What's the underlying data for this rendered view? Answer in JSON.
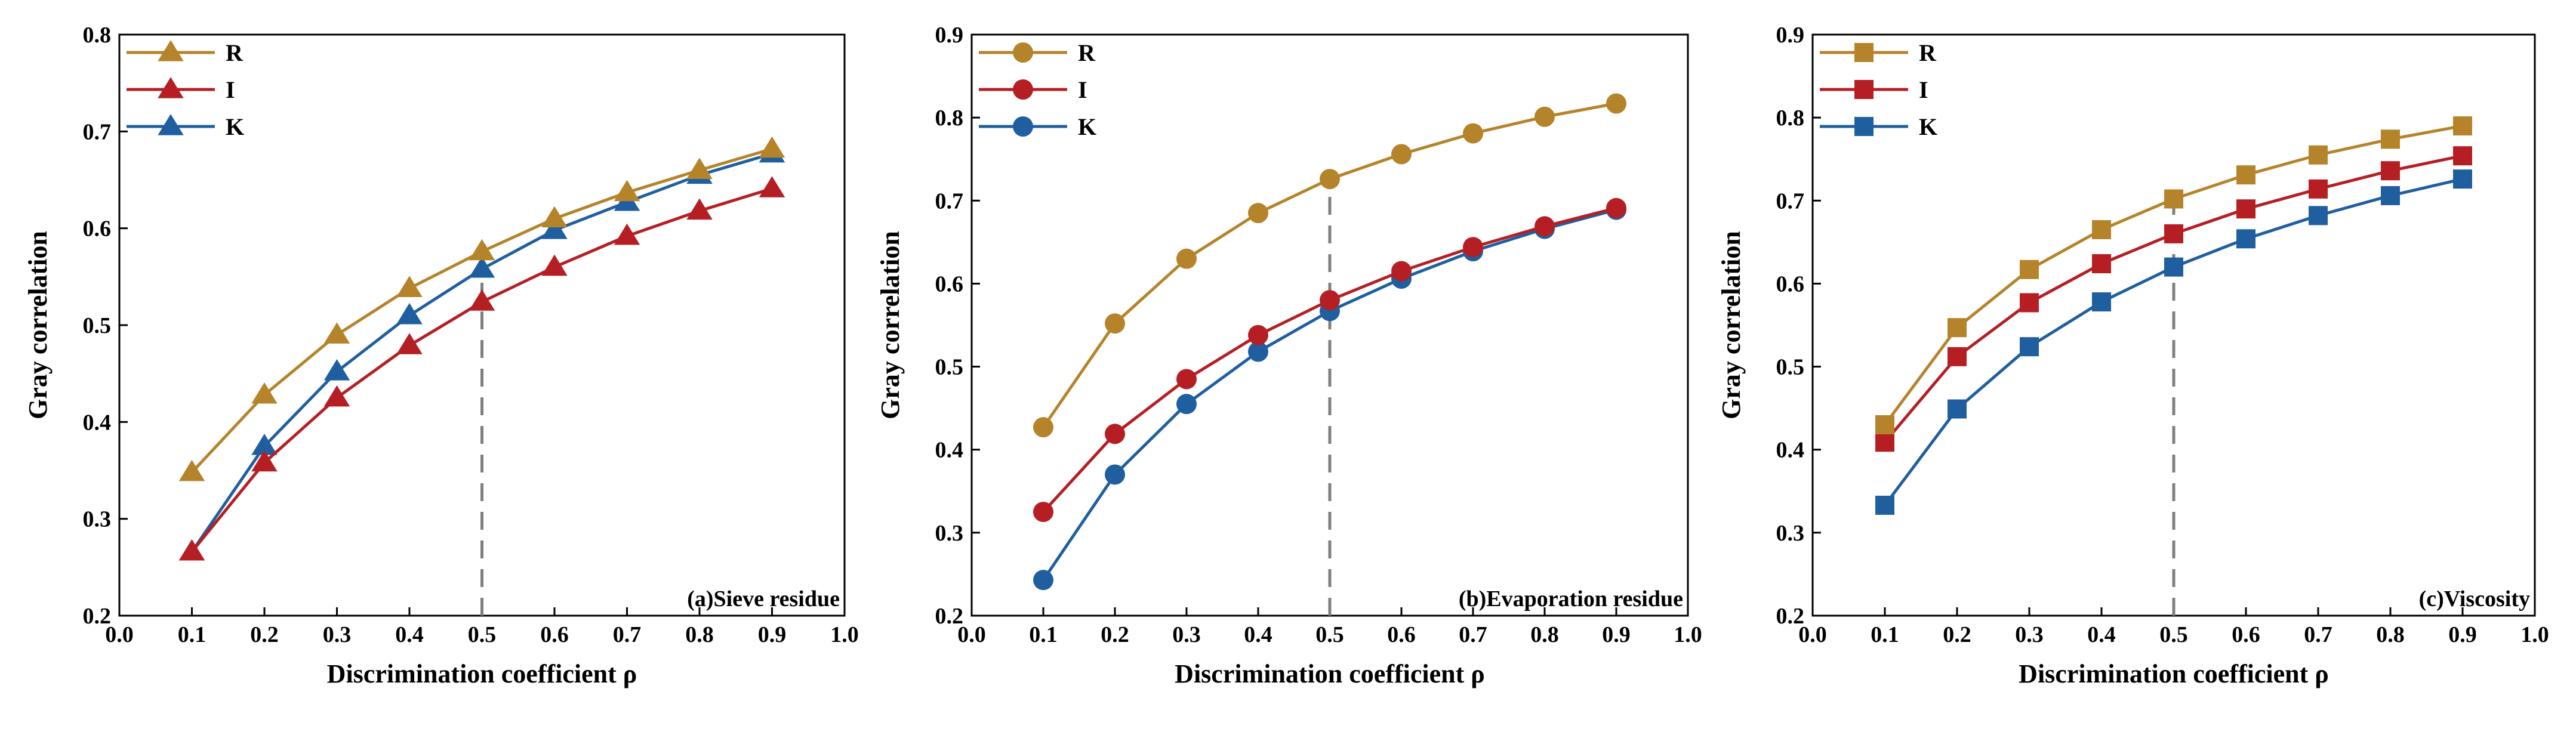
{
  "figure": {
    "series_colors": {
      "R": "#b5842a",
      "I": "#b51f24",
      "K": "#1f5fa0"
    },
    "reference_line_color": "#7f7f7f"
  },
  "chart_data": [
    {
      "type": "line",
      "marker": "triangle",
      "panel_label": "(a)Sieve residue",
      "xlabel": "Discrimination coefficient ρ",
      "ylabel": "Gray correlation",
      "xlim": [
        0.0,
        1.0
      ],
      "ylim": [
        0.2,
        0.8
      ],
      "x_ticks": [
        "0.0",
        "0.1",
        "0.2",
        "0.3",
        "0.4",
        "0.5",
        "0.6",
        "0.7",
        "0.8",
        "0.9",
        "1.0"
      ],
      "y_ticks": [
        "0.2",
        "0.3",
        "0.4",
        "0.5",
        "0.6",
        "0.7",
        "0.8"
      ],
      "reference_x": 0.5,
      "legend_position": "top-left",
      "x": [
        0.1,
        0.2,
        0.3,
        0.4,
        0.5,
        0.6,
        0.7,
        0.8,
        0.9
      ],
      "series": [
        {
          "name": "R",
          "values": [
            0.348,
            0.428,
            0.49,
            0.538,
            0.576,
            0.61,
            0.637,
            0.66,
            0.682
          ]
        },
        {
          "name": "I",
          "values": [
            0.266,
            0.358,
            0.425,
            0.479,
            0.524,
            0.56,
            0.592,
            0.618,
            0.641
          ]
        },
        {
          "name": "K",
          "values": [
            0.266,
            0.375,
            0.452,
            0.51,
            0.558,
            0.598,
            0.627,
            0.655,
            0.677
          ]
        }
      ]
    },
    {
      "type": "line",
      "marker": "circle",
      "panel_label": "(b)Evaporation residue",
      "xlabel": "Discrimination coefficient ρ",
      "ylabel": "Gray correlation",
      "xlim": [
        0.0,
        1.0
      ],
      "ylim": [
        0.2,
        0.9
      ],
      "x_ticks": [
        "0.0",
        "0.1",
        "0.2",
        "0.3",
        "0.4",
        "0.5",
        "0.6",
        "0.7",
        "0.8",
        "0.9",
        "1.0"
      ],
      "y_ticks": [
        "0.2",
        "0.3",
        "0.4",
        "0.5",
        "0.6",
        "0.7",
        "0.8",
        "0.9"
      ],
      "reference_x": 0.5,
      "legend_position": "top-left",
      "x": [
        0.1,
        0.2,
        0.3,
        0.4,
        0.5,
        0.6,
        0.7,
        0.8,
        0.9
      ],
      "series": [
        {
          "name": "R",
          "values": [
            0.427,
            0.552,
            0.63,
            0.685,
            0.726,
            0.756,
            0.781,
            0.801,
            0.817
          ]
        },
        {
          "name": "I",
          "values": [
            0.325,
            0.419,
            0.485,
            0.538,
            0.58,
            0.615,
            0.644,
            0.669,
            0.691
          ]
        },
        {
          "name": "K",
          "values": [
            0.243,
            0.37,
            0.455,
            0.518,
            0.567,
            0.606,
            0.639,
            0.666,
            0.689
          ]
        }
      ]
    },
    {
      "type": "line",
      "marker": "square",
      "panel_label": "(c)Viscosity",
      "xlabel": "Discrimination coefficient ρ",
      "ylabel": "Gray correlation",
      "xlim": [
        0.0,
        1.0
      ],
      "ylim": [
        0.2,
        0.9
      ],
      "x_ticks": [
        "0.0",
        "0.1",
        "0.2",
        "0.3",
        "0.4",
        "0.5",
        "0.6",
        "0.7",
        "0.8",
        "0.9",
        "1.0"
      ],
      "y_ticks": [
        "0.2",
        "0.3",
        "0.4",
        "0.5",
        "0.6",
        "0.7",
        "0.8",
        "0.9"
      ],
      "reference_x": 0.5,
      "legend_position": "top-left",
      "x": [
        0.1,
        0.2,
        0.3,
        0.4,
        0.5,
        0.6,
        0.7,
        0.8,
        0.9
      ],
      "series": [
        {
          "name": "R",
          "values": [
            0.43,
            0.547,
            0.617,
            0.665,
            0.702,
            0.731,
            0.755,
            0.774,
            0.79
          ]
        },
        {
          "name": "I",
          "values": [
            0.409,
            0.512,
            0.577,
            0.624,
            0.66,
            0.69,
            0.714,
            0.736,
            0.754
          ]
        },
        {
          "name": "K",
          "values": [
            0.333,
            0.449,
            0.524,
            0.578,
            0.62,
            0.654,
            0.682,
            0.706,
            0.726
          ]
        }
      ]
    }
  ]
}
